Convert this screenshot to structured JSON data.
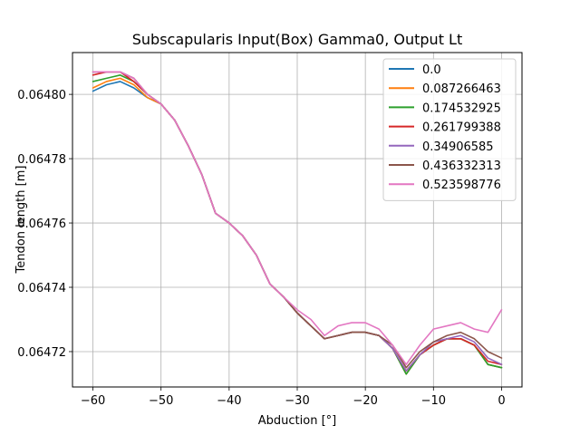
{
  "chart_data": {
    "type": "line",
    "title": "Subscapularis Input(Box) Gamma0, Output Lt",
    "xlabel": "Abduction [°]",
    "ylabel": "Tendon length [m]",
    "xlim": [
      -63,
      3
    ],
    "ylim": [
      0.064709,
      0.064813
    ],
    "xticks": [
      -60,
      -50,
      -40,
      -30,
      -20,
      -10,
      0
    ],
    "yticks": [
      0.06472,
      0.06474,
      0.06476,
      0.06478,
      0.0648
    ],
    "ytick_labels": [
      "0.06472",
      "0.06474",
      "0.06476",
      "0.06478",
      "0.06480"
    ],
    "grid": true,
    "legend_position": "upper right",
    "series": [
      {
        "name": "0.0",
        "color": "#1f77b4",
        "x": [
          -60,
          -58,
          -56,
          -54,
          -52,
          -50,
          -48,
          -46,
          -44,
          -42,
          -40,
          -38,
          -36,
          -34,
          -32,
          -30,
          -28,
          -26,
          -24,
          -22,
          -20,
          -18,
          -16,
          -14,
          -12,
          -10,
          -8,
          -6,
          -4,
          -2,
          0
        ],
        "y": [
          0.064801,
          0.064803,
          0.064804,
          0.064802,
          0.064799,
          0.064797,
          0.064792,
          0.064784,
          0.064775,
          0.064763,
          0.06476,
          0.064756,
          0.06475,
          0.064741,
          0.064737,
          0.064732,
          0.064728,
          0.064724,
          0.064725,
          0.064726,
          0.064726,
          0.064725,
          0.064721,
          0.064713,
          0.064719,
          0.064722,
          0.064724,
          0.064724,
          0.064722,
          0.064716,
          0.064715
        ]
      },
      {
        "name": "0.087266463",
        "color": "#ff7f0e",
        "x": [
          -60,
          -58,
          -56,
          -54,
          -52,
          -50,
          -48,
          -46,
          -44,
          -42,
          -40,
          -38,
          -36,
          -34,
          -32,
          -30,
          -28,
          -26,
          -24,
          -22,
          -20,
          -18,
          -16,
          -14,
          -12,
          -10,
          -8,
          -6,
          -4,
          -2,
          0
        ],
        "y": [
          0.064802,
          0.064804,
          0.064805,
          0.064803,
          0.064799,
          0.064797,
          0.064792,
          0.064784,
          0.064775,
          0.064763,
          0.06476,
          0.064756,
          0.06475,
          0.064741,
          0.064737,
          0.064732,
          0.064728,
          0.064724,
          0.064725,
          0.064726,
          0.064726,
          0.064725,
          0.064721,
          0.064713,
          0.064719,
          0.064722,
          0.064724,
          0.064724,
          0.064722,
          0.064716,
          0.064715
        ]
      },
      {
        "name": "0.174532925",
        "color": "#2ca02c",
        "x": [
          -60,
          -58,
          -56,
          -54,
          -52,
          -50,
          -48,
          -46,
          -44,
          -42,
          -40,
          -38,
          -36,
          -34,
          -32,
          -30,
          -28,
          -26,
          -24,
          -22,
          -20,
          -18,
          -16,
          -14,
          -12,
          -10,
          -8,
          -6,
          -4,
          -2,
          0
        ],
        "y": [
          0.064804,
          0.064805,
          0.064806,
          0.064804,
          0.0648,
          0.064797,
          0.064792,
          0.064784,
          0.064775,
          0.064763,
          0.06476,
          0.064756,
          0.06475,
          0.064741,
          0.064737,
          0.064732,
          0.064728,
          0.064724,
          0.064725,
          0.064726,
          0.064726,
          0.064725,
          0.064721,
          0.064713,
          0.064719,
          0.064722,
          0.064724,
          0.064724,
          0.064722,
          0.064716,
          0.064715
        ]
      },
      {
        "name": "0.261799388",
        "color": "#d62728",
        "x": [
          -60,
          -58,
          -56,
          -54,
          -52,
          -50,
          -48,
          -46,
          -44,
          -42,
          -40,
          -38,
          -36,
          -34,
          -32,
          -30,
          -28,
          -26,
          -24,
          -22,
          -20,
          -18,
          -16,
          -14,
          -12,
          -10,
          -8,
          -6,
          -4,
          -2,
          0
        ],
        "y": [
          0.064806,
          0.064807,
          0.064807,
          0.064804,
          0.0648,
          0.064797,
          0.064792,
          0.064784,
          0.064775,
          0.064763,
          0.06476,
          0.064756,
          0.06475,
          0.064741,
          0.064737,
          0.064732,
          0.064728,
          0.064724,
          0.064725,
          0.064726,
          0.064726,
          0.064725,
          0.064721,
          0.064714,
          0.064719,
          0.064722,
          0.064724,
          0.064724,
          0.064722,
          0.064717,
          0.064716
        ]
      },
      {
        "name": "0.34906585",
        "color": "#9467bd",
        "x": [
          -60,
          -58,
          -56,
          -54,
          -52,
          -50,
          -48,
          -46,
          -44,
          -42,
          -40,
          -38,
          -36,
          -34,
          -32,
          -30,
          -28,
          -26,
          -24,
          -22,
          -20,
          -18,
          -16,
          -14,
          -12,
          -10,
          -8,
          -6,
          -4,
          -2,
          0
        ],
        "y": [
          0.064807,
          0.064807,
          0.064807,
          0.064805,
          0.0648,
          0.064797,
          0.064792,
          0.064784,
          0.064775,
          0.064763,
          0.06476,
          0.064756,
          0.06475,
          0.064741,
          0.064737,
          0.064732,
          0.064728,
          0.064724,
          0.064725,
          0.064726,
          0.064726,
          0.064725,
          0.064721,
          0.064714,
          0.064719,
          0.064723,
          0.064724,
          0.064725,
          0.064723,
          0.064718,
          0.064716
        ]
      },
      {
        "name": "0.436332313",
        "color": "#8c564b",
        "x": [
          -60,
          -58,
          -56,
          -54,
          -52,
          -50,
          -48,
          -46,
          -44,
          -42,
          -40,
          -38,
          -36,
          -34,
          -32,
          -30,
          -28,
          -26,
          -24,
          -22,
          -20,
          -18,
          -16,
          -14,
          -12,
          -10,
          -8,
          -6,
          -4,
          -2,
          0
        ],
        "y": [
          0.064807,
          0.064807,
          0.064807,
          0.064805,
          0.0648,
          0.064797,
          0.064792,
          0.064784,
          0.064775,
          0.064763,
          0.06476,
          0.064756,
          0.06475,
          0.064741,
          0.064737,
          0.064732,
          0.064728,
          0.064724,
          0.064725,
          0.064726,
          0.064726,
          0.064725,
          0.064722,
          0.064715,
          0.06472,
          0.064723,
          0.064725,
          0.064726,
          0.064724,
          0.06472,
          0.064718
        ]
      },
      {
        "name": "0.523598776",
        "color": "#e377c2",
        "x": [
          -60,
          -58,
          -56,
          -54,
          -52,
          -50,
          -48,
          -46,
          -44,
          -42,
          -40,
          -38,
          -36,
          -34,
          -32,
          -30,
          -28,
          -26,
          -24,
          -22,
          -20,
          -18,
          -16,
          -14,
          -12,
          -10,
          -8,
          -6,
          -4,
          -2,
          0
        ],
        "y": [
          0.064807,
          0.064807,
          0.064807,
          0.064805,
          0.0648,
          0.064797,
          0.064792,
          0.064784,
          0.064775,
          0.064763,
          0.06476,
          0.064756,
          0.06475,
          0.064741,
          0.064737,
          0.064733,
          0.06473,
          0.064725,
          0.064728,
          0.064729,
          0.064729,
          0.064727,
          0.064722,
          0.064716,
          0.064722,
          0.064727,
          0.064728,
          0.064729,
          0.064727,
          0.064726,
          0.064733
        ]
      }
    ]
  }
}
